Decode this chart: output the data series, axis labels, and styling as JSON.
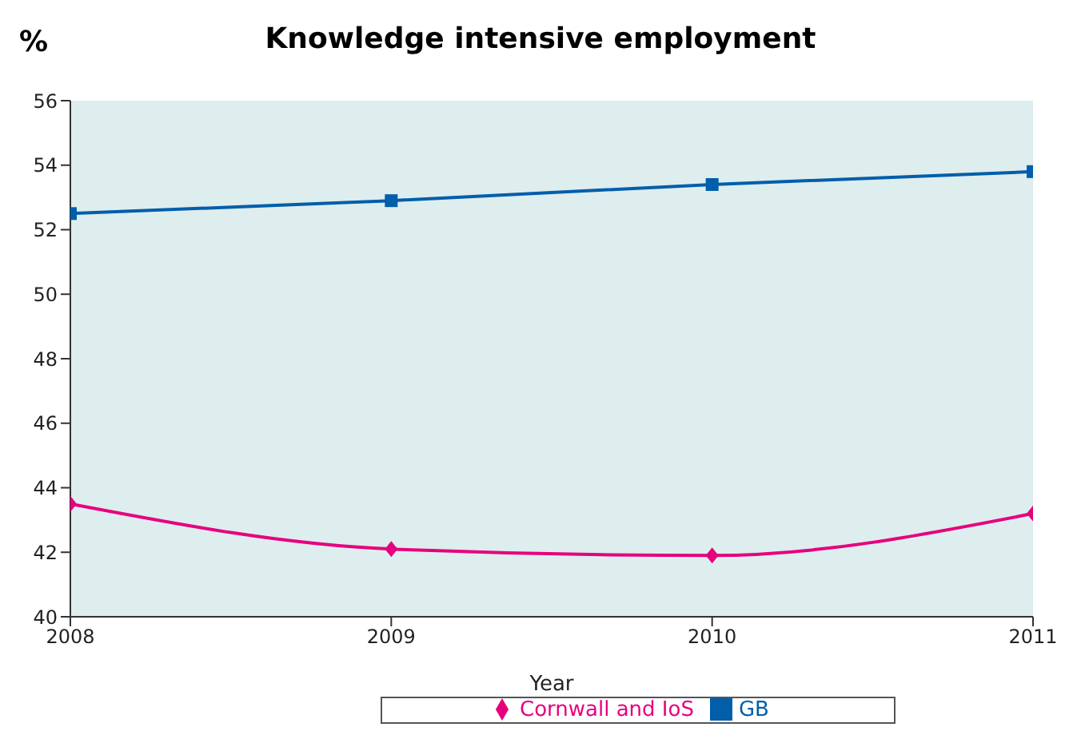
{
  "chart_data": {
    "type": "line",
    "title": "Knowledge intensive employment",
    "xlabel": "Year",
    "ylabel": "%",
    "x": [
      2008,
      2009,
      2010,
      2011
    ],
    "xlim": [
      2008,
      2011
    ],
    "xticks": [
      2008,
      2009,
      2010,
      2011
    ],
    "ylim": [
      40,
      56
    ],
    "yticks": [
      40,
      42,
      44,
      46,
      48,
      50,
      52,
      54,
      56
    ],
    "series": [
      {
        "name": "Cornwall and IoS",
        "color": "#e6007e",
        "values": [
          43.5,
          42.1,
          41.9,
          43.2
        ],
        "marker": "diamond"
      },
      {
        "name": "GB",
        "color": "#005eaa",
        "values": [
          52.5,
          52.9,
          53.4,
          53.8
        ],
        "marker": "square"
      }
    ],
    "grid": false,
    "legend": "bottom"
  }
}
